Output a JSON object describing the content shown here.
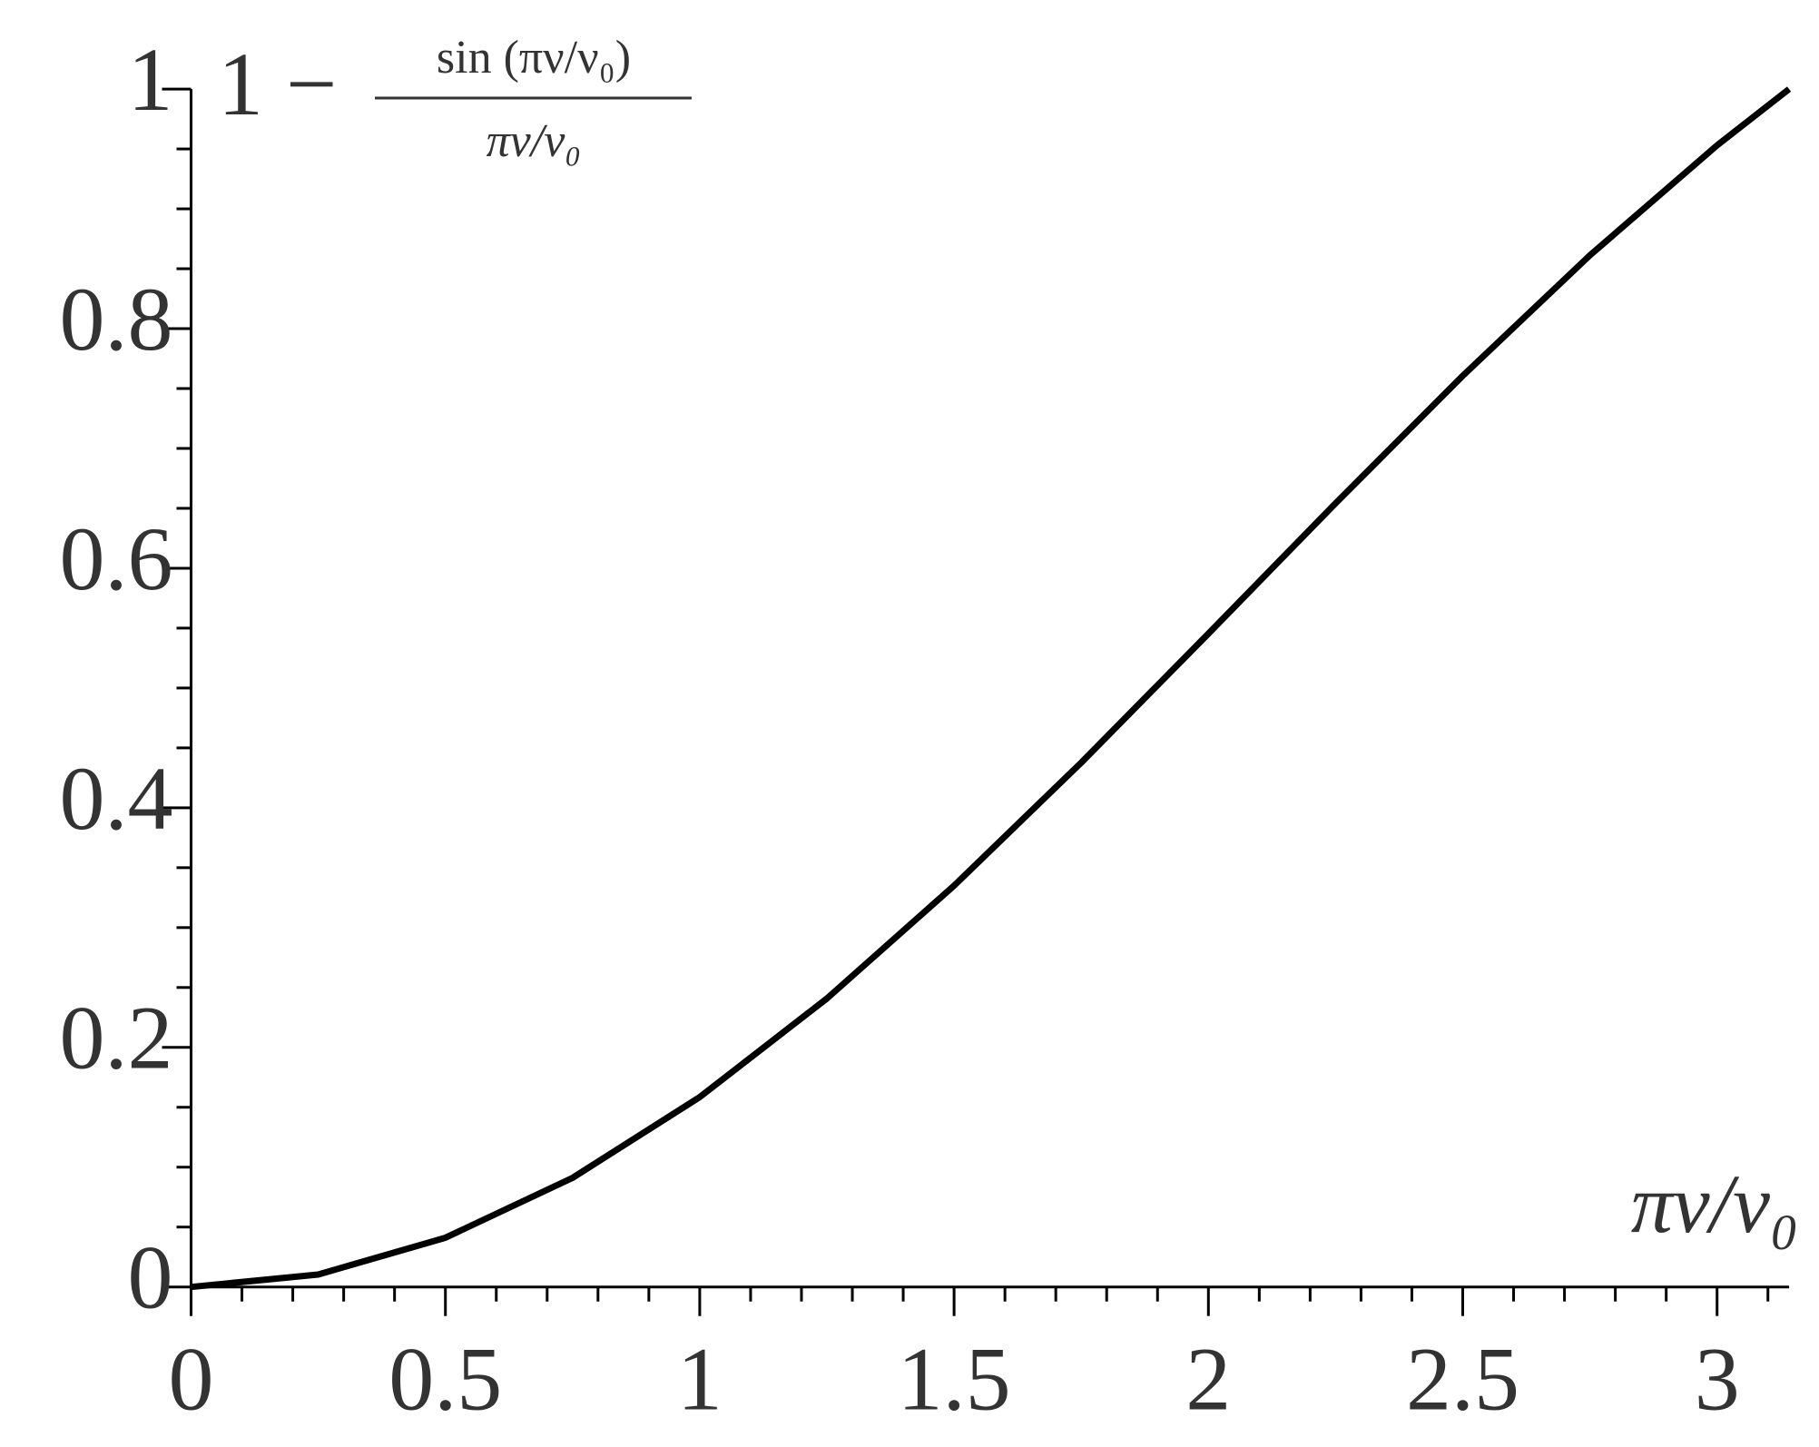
{
  "chart_data": {
    "type": "line",
    "ylabel": {
      "lead": "1 −",
      "numerator": "sin (πν/ν₀)",
      "denominator": "πν/ν₀"
    },
    "xlabel": "πν/ν₀",
    "x": [
      0,
      0.25,
      0.5,
      0.75,
      1,
      1.25,
      1.5,
      1.75,
      2,
      2.25,
      2.5,
      2.75,
      3,
      3.1416
    ],
    "series": [
      {
        "color": "#000000",
        "values": [
          0,
          0.0104,
          0.0411,
          0.0911,
          0.1585,
          0.2408,
          0.335,
          0.4377,
          0.5454,
          0.6542,
          0.7606,
          0.8612,
          0.953,
          1.0
        ]
      }
    ],
    "xlim": [
      0,
      3.1416
    ],
    "ylim": [
      0,
      1
    ],
    "xticks": [
      0,
      0.5,
      1,
      1.5,
      2,
      2.5,
      3
    ],
    "yticks": [
      0,
      0.2,
      0.4,
      0.6,
      0.8,
      1
    ],
    "xminorticks": [
      0.1,
      0.2,
      0.3,
      0.4,
      0.6,
      0.7,
      0.8,
      0.9,
      1.1,
      1.2,
      1.3,
      1.4,
      1.6,
      1.7,
      1.8,
      1.9,
      2.1,
      2.2,
      2.3,
      2.4,
      2.6,
      2.7,
      2.8,
      2.9,
      3.1
    ],
    "yminorticks": [
      0.05,
      0.1,
      0.15,
      0.25,
      0.3,
      0.35,
      0.45,
      0.5,
      0.55,
      0.65,
      0.7,
      0.75,
      0.85,
      0.9,
      0.95
    ]
  }
}
